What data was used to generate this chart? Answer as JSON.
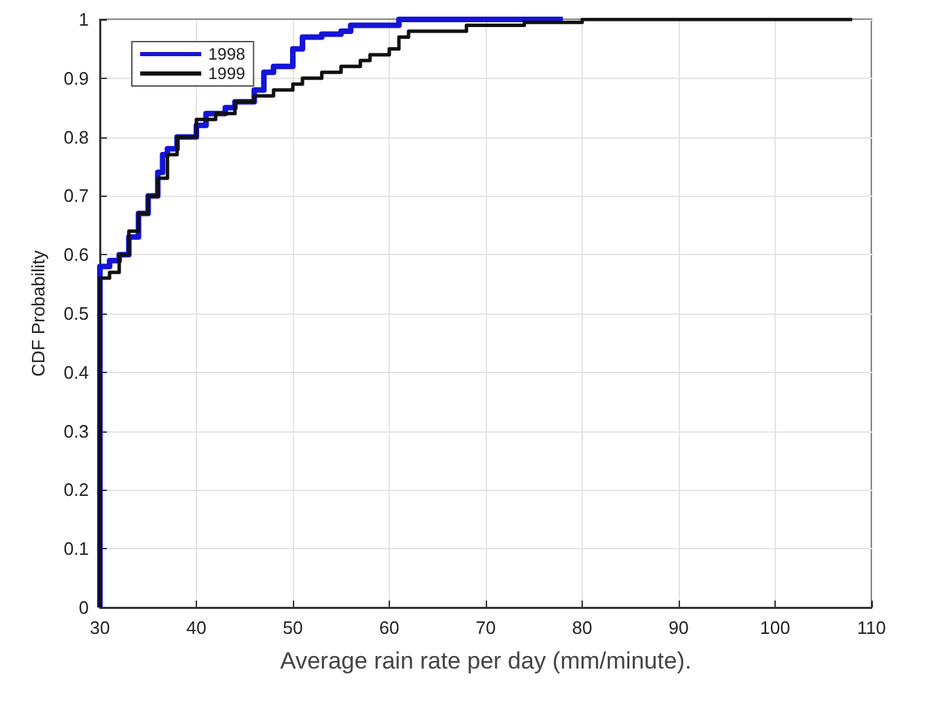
{
  "chart_data": {
    "type": "step",
    "xlabel": "Average rain rate per day (mm/minute).",
    "ylabel": "CDF Probability",
    "xlim": [
      30,
      110
    ],
    "xticks": [
      30,
      40,
      50,
      60,
      70,
      80,
      90,
      100,
      110
    ],
    "ylim": [
      0,
      1
    ],
    "yticks": [
      0,
      0.1,
      0.2,
      0.3,
      0.4,
      0.5,
      0.6,
      0.7,
      0.8,
      0.9,
      1
    ],
    "grid": true,
    "legend": "top left",
    "marker": "none",
    "line_style": "solid",
    "series": [
      {
        "name": "1998",
        "color": "#1414d8",
        "x": [
          30,
          30,
          31,
          32,
          33,
          34,
          35,
          36,
          36.5,
          37,
          38,
          40,
          41,
          43,
          44,
          46,
          47,
          48,
          50,
          51,
          53,
          55,
          56,
          61,
          78
        ],
        "values": [
          0,
          0.58,
          0.59,
          0.6,
          0.63,
          0.67,
          0.7,
          0.74,
          0.77,
          0.78,
          0.8,
          0.82,
          0.84,
          0.85,
          0.86,
          0.88,
          0.91,
          0.92,
          0.95,
          0.97,
          0.975,
          0.98,
          0.99,
          1,
          1
        ]
      },
      {
        "name": "1999",
        "color": "#111111",
        "x": [
          30,
          30,
          31,
          32,
          33,
          34,
          35,
          36,
          37,
          38,
          40,
          42,
          44,
          46,
          48,
          50,
          51,
          53,
          55,
          57,
          58,
          60,
          61,
          62,
          68,
          74,
          80,
          108
        ],
        "values": [
          0,
          0.56,
          0.57,
          0.6,
          0.64,
          0.67,
          0.7,
          0.73,
          0.77,
          0.8,
          0.83,
          0.84,
          0.86,
          0.87,
          0.88,
          0.89,
          0.9,
          0.91,
          0.92,
          0.93,
          0.94,
          0.95,
          0.97,
          0.98,
          0.99,
          0.995,
          1,
          1
        ]
      }
    ]
  }
}
